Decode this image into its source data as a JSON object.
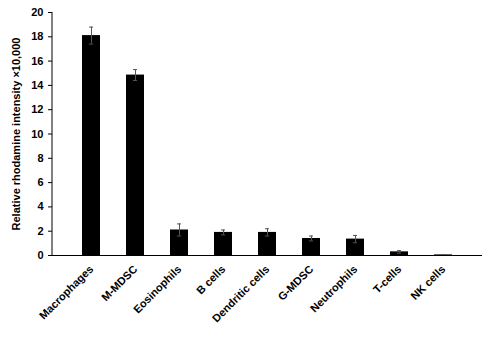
{
  "chart_data": {
    "type": "bar",
    "y_label": "Relative rhodamine intensity ×10,000",
    "categories": [
      "Macrophages",
      "M-MDSC",
      "Eosinophils",
      "B cells",
      "Dendritic cells",
      "G-MDSC",
      "Neutrophils",
      "T-cells",
      "NK cells"
    ],
    "values": [
      18.1,
      14.85,
      2.1,
      1.9,
      1.9,
      1.4,
      1.35,
      0.3,
      0.05
    ],
    "errors": [
      0.7,
      0.45,
      0.5,
      0.2,
      0.3,
      0.2,
      0.3,
      0.1,
      0.02
    ],
    "color": "#000000",
    "ylim": [
      0,
      20
    ],
    "yticks": [
      0,
      2,
      4,
      6,
      8,
      10,
      12,
      14,
      16,
      18,
      20
    ],
    "grid": false
  }
}
